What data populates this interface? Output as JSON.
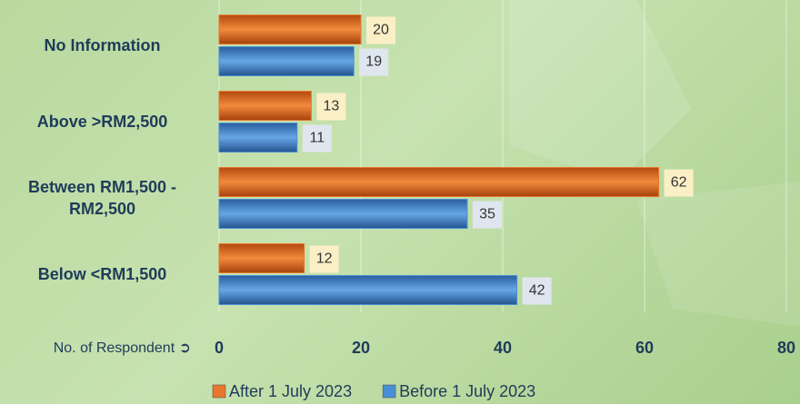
{
  "chart_data": {
    "type": "bar",
    "orientation": "horizontal",
    "categories": [
      "No Information",
      "Above >RM2,500",
      "Between RM1,500 - RM2,500",
      "Below <RM1,500"
    ],
    "series": [
      {
        "name": "After 1 July 2023",
        "color": "#e8772e",
        "values": [
          20,
          13,
          62,
          12
        ]
      },
      {
        "name": "Before 1 July 2023",
        "color": "#4a8fd4",
        "values": [
          19,
          11,
          35,
          42
        ]
      }
    ],
    "x_axis_label": "No. of Respondent ➲",
    "xlim": [
      0,
      80
    ],
    "xticks": [
      0,
      20,
      40,
      60,
      80
    ],
    "grid": true,
    "legend": "bottom"
  }
}
